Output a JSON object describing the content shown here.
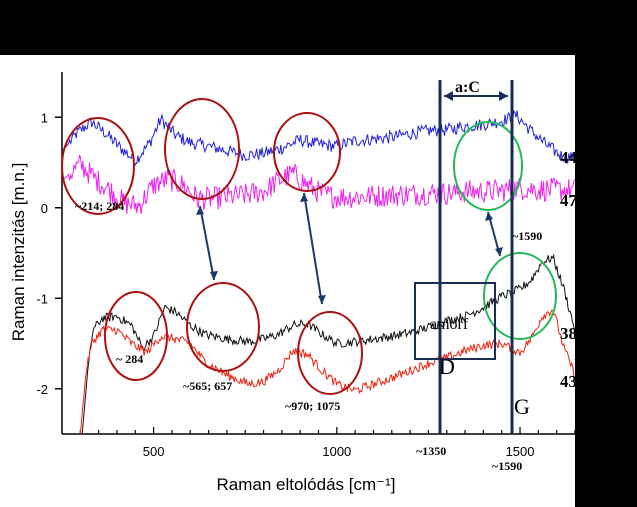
{
  "chart_data": {
    "type": "line",
    "xlabel": "Raman eltolódás [cm⁻¹]",
    "ylabel": "Raman intenzitás [m.n.]",
    "xlim": [
      250,
      1650
    ],
    "ylim": [
      -2.5,
      1.5
    ],
    "x_ticks": [
      500,
      1000,
      1500
    ],
    "y_ticks": [
      1,
      0,
      -1,
      -2
    ],
    "series": [
      {
        "name": "44",
        "color": "#2222dd",
        "base": 0.62,
        "points": [
          [
            250,
            0.62
          ],
          [
            290,
            0.82
          ],
          [
            330,
            0.95
          ],
          [
            370,
            0.82
          ],
          [
            410,
            0.66
          ],
          [
            450,
            0.52
          ],
          [
            490,
            0.72
          ],
          [
            520,
            0.98
          ],
          [
            560,
            0.8
          ],
          [
            600,
            0.72
          ],
          [
            650,
            0.68
          ],
          [
            700,
            0.63
          ],
          [
            750,
            0.58
          ],
          [
            800,
            0.6
          ],
          [
            850,
            0.66
          ],
          [
            900,
            0.75
          ],
          [
            950,
            0.7
          ],
          [
            1000,
            0.68
          ],
          [
            1050,
            0.74
          ],
          [
            1100,
            0.76
          ],
          [
            1150,
            0.78
          ],
          [
            1200,
            0.82
          ],
          [
            1250,
            0.85
          ],
          [
            1300,
            0.86
          ],
          [
            1350,
            0.9
          ],
          [
            1400,
            0.92
          ],
          [
            1450,
            0.96
          ],
          [
            1490,
            1.02
          ],
          [
            1530,
            0.85
          ],
          [
            1570,
            0.7
          ],
          [
            1610,
            0.58
          ],
          [
            1650,
            0.55
          ]
        ]
      },
      {
        "name": "47",
        "color": "#ee22ee",
        "base": 0.18,
        "points": [
          [
            250,
            0.3
          ],
          [
            300,
            0.48
          ],
          [
            340,
            0.32
          ],
          [
            380,
            0.2
          ],
          [
            420,
            0.05
          ],
          [
            460,
            0.02
          ],
          [
            500,
            0.25
          ],
          [
            540,
            0.32
          ],
          [
            580,
            0.25
          ],
          [
            620,
            0.1
          ],
          [
            660,
            0.1
          ],
          [
            700,
            0.12
          ],
          [
            750,
            0.14
          ],
          [
            800,
            0.18
          ],
          [
            840,
            0.3
          ],
          [
            880,
            0.38
          ],
          [
            920,
            0.25
          ],
          [
            960,
            0.15
          ],
          [
            1000,
            0.12
          ],
          [
            1050,
            0.12
          ],
          [
            1100,
            0.13
          ],
          [
            1150,
            0.14
          ],
          [
            1200,
            0.15
          ],
          [
            1250,
            0.16
          ],
          [
            1300,
            0.16
          ],
          [
            1350,
            0.18
          ],
          [
            1400,
            0.18
          ],
          [
            1450,
            0.19
          ],
          [
            1500,
            0.22
          ],
          [
            1550,
            0.2
          ],
          [
            1600,
            0.2
          ],
          [
            1650,
            0.2
          ]
        ]
      },
      {
        "name": "38",
        "color": "#111111",
        "base": -1.35,
        "points": [
          [
            305,
            -2.5
          ],
          [
            320,
            -1.8
          ],
          [
            335,
            -1.35
          ],
          [
            360,
            -1.22
          ],
          [
            400,
            -1.2
          ],
          [
            440,
            -1.3
          ],
          [
            470,
            -1.55
          ],
          [
            500,
            -1.42
          ],
          [
            530,
            -1.1
          ],
          [
            560,
            -1.15
          ],
          [
            600,
            -1.3
          ],
          [
            640,
            -1.4
          ],
          [
            700,
            -1.45
          ],
          [
            760,
            -1.48
          ],
          [
            800,
            -1.45
          ],
          [
            840,
            -1.4
          ],
          [
            880,
            -1.3
          ],
          [
            920,
            -1.28
          ],
          [
            960,
            -1.4
          ],
          [
            1000,
            -1.5
          ],
          [
            1050,
            -1.48
          ],
          [
            1100,
            -1.45
          ],
          [
            1150,
            -1.42
          ],
          [
            1200,
            -1.38
          ],
          [
            1250,
            -1.32
          ],
          [
            1300,
            -1.25
          ],
          [
            1350,
            -1.2
          ],
          [
            1400,
            -1.1
          ],
          [
            1450,
            -0.98
          ],
          [
            1500,
            -0.9
          ],
          [
            1530,
            -0.8
          ],
          [
            1560,
            -0.6
          ],
          [
            1590,
            -0.55
          ],
          [
            1620,
            -0.9
          ],
          [
            1650,
            -1.35
          ]
        ]
      },
      {
        "name": "43",
        "color": "#ee2211",
        "base": -1.85,
        "points": [
          [
            300,
            -2.5
          ],
          [
            315,
            -1.85
          ],
          [
            330,
            -1.5
          ],
          [
            360,
            -1.35
          ],
          [
            400,
            -1.35
          ],
          [
            440,
            -1.5
          ],
          [
            480,
            -1.6
          ],
          [
            520,
            -1.42
          ],
          [
            560,
            -1.45
          ],
          [
            600,
            -1.5
          ],
          [
            640,
            -1.7
          ],
          [
            700,
            -1.85
          ],
          [
            760,
            -1.95
          ],
          [
            800,
            -1.92
          ],
          [
            840,
            -1.8
          ],
          [
            880,
            -1.58
          ],
          [
            920,
            -1.62
          ],
          [
            960,
            -1.8
          ],
          [
            1000,
            -1.95
          ],
          [
            1050,
            -2.02
          ],
          [
            1100,
            -1.95
          ],
          [
            1150,
            -1.88
          ],
          [
            1200,
            -1.8
          ],
          [
            1250,
            -1.72
          ],
          [
            1300,
            -1.66
          ],
          [
            1350,
            -1.58
          ],
          [
            1400,
            -1.52
          ],
          [
            1450,
            -1.5
          ],
          [
            1500,
            -1.6
          ],
          [
            1530,
            -1.45
          ],
          [
            1560,
            -1.2
          ],
          [
            1590,
            -1.12
          ],
          [
            1620,
            -1.55
          ],
          [
            1650,
            -1.85
          ]
        ]
      }
    ],
    "annotations": {
      "ac": "a:C",
      "amorf": "amorf",
      "D": "D",
      "G": "G",
      "p1": "~214; 284",
      "p2": "~ 284",
      "p3": "~565; 657",
      "p4": "~970; 1075",
      "p1590a": "~1590",
      "x1350": "~1350",
      "x1590": "~1590"
    }
  }
}
